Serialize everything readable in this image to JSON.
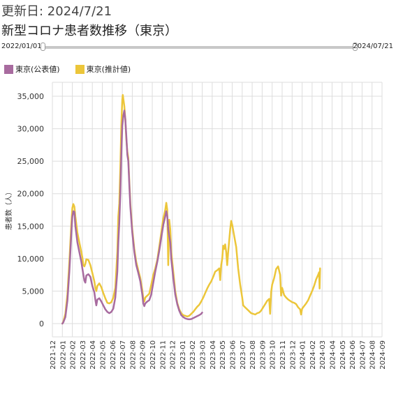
{
  "header": {
    "updated": "更新日: 2024/7/21",
    "title": "新型コロナ患者数推移（東京）"
  },
  "range": {
    "start": "2022/01/01",
    "end": "2024/07/21"
  },
  "colors": {
    "official": "#a86b9f",
    "estimated": "#ecc63a",
    "grid": "#dddddd"
  },
  "chart_data": {
    "type": "line",
    "title": "",
    "xlabel": "",
    "ylabel": "患者数（人）",
    "ylim": [
      0,
      35000
    ],
    "yticks": [
      0,
      5000,
      10000,
      15000,
      20000,
      25000,
      30000,
      35000
    ],
    "ytick_labels": [
      "0",
      "5,000",
      "10,000",
      "15,000",
      "20,000",
      "25,000",
      "30,000",
      "35,000"
    ],
    "x_categories": [
      "2021-12",
      "2022-01",
      "2022-02",
      "2022-03",
      "2022-04",
      "2022-05",
      "2022-06",
      "2022-07",
      "2022-08",
      "2022-09",
      "2022-10",
      "2022-11",
      "2022-12",
      "2023-01",
      "2023-02",
      "2023-03",
      "2023-04",
      "2023-05",
      "2023-06",
      "2023-07",
      "2023-08",
      "2023-09",
      "2023-10",
      "2023-11",
      "2023-12",
      "2024-01",
      "2024-02",
      "2024-03",
      "2024-04",
      "2024-05",
      "2024-06",
      "2024-07",
      "2024-08",
      "2024-09"
    ],
    "legend_position": "top-left",
    "grid": true,
    "series": [
      {
        "name": "東京(公表値)",
        "color": "#a86b9f",
        "points": [
          [
            1,
            0
          ],
          [
            1.1,
            200
          ],
          [
            1.3,
            1000
          ],
          [
            1.5,
            3500
          ],
          [
            1.7,
            8000
          ],
          [
            1.9,
            14000
          ],
          [
            2.0,
            16500
          ],
          [
            2.1,
            17300
          ],
          [
            2.2,
            17200
          ],
          [
            2.3,
            15000
          ],
          [
            2.5,
            12500
          ],
          [
            2.7,
            11000
          ],
          [
            2.9,
            9500
          ],
          [
            3.0,
            8500
          ],
          [
            3.1,
            7600
          ],
          [
            3.2,
            6600
          ],
          [
            3.3,
            6300
          ],
          [
            3.4,
            7400
          ],
          [
            3.6,
            7600
          ],
          [
            3.8,
            7200
          ],
          [
            4.0,
            5800
          ],
          [
            4.2,
            4800
          ],
          [
            4.3,
            3700
          ],
          [
            4.4,
            2800
          ],
          [
            4.5,
            3700
          ],
          [
            4.7,
            3900
          ],
          [
            4.9,
            3400
          ],
          [
            5.1,
            2800
          ],
          [
            5.3,
            2200
          ],
          [
            5.5,
            1800
          ],
          [
            5.7,
            1600
          ],
          [
            5.9,
            1800
          ],
          [
            6.1,
            2300
          ],
          [
            6.3,
            4000
          ],
          [
            6.5,
            8000
          ],
          [
            6.6,
            12500
          ],
          [
            6.7,
            15500
          ],
          [
            6.8,
            20000
          ],
          [
            6.9,
            26000
          ],
          [
            7.0,
            30500
          ],
          [
            7.1,
            32000
          ],
          [
            7.2,
            32800
          ],
          [
            7.3,
            31500
          ],
          [
            7.4,
            29000
          ],
          [
            7.5,
            26000
          ],
          [
            7.6,
            25000
          ],
          [
            7.7,
            21500
          ],
          [
            7.8,
            18000
          ],
          [
            8.0,
            14000
          ],
          [
            8.2,
            11000
          ],
          [
            8.4,
            9000
          ],
          [
            8.6,
            7800
          ],
          [
            8.8,
            6500
          ],
          [
            9.0,
            4500
          ],
          [
            9.1,
            3100
          ],
          [
            9.2,
            2700
          ],
          [
            9.3,
            3100
          ],
          [
            9.5,
            3400
          ],
          [
            9.7,
            3600
          ],
          [
            9.9,
            4500
          ],
          [
            10.1,
            6300
          ],
          [
            10.3,
            8000
          ],
          [
            10.5,
            9500
          ],
          [
            10.7,
            11200
          ],
          [
            10.9,
            13200
          ],
          [
            11.1,
            15200
          ],
          [
            11.3,
            16500
          ],
          [
            11.4,
            17300
          ],
          [
            11.5,
            16500
          ],
          [
            11.6,
            14500
          ],
          [
            11.7,
            13500
          ],
          [
            11.8,
            12500
          ],
          [
            11.9,
            10000
          ],
          [
            12.1,
            7000
          ],
          [
            12.3,
            4500
          ],
          [
            12.5,
            3000
          ],
          [
            12.7,
            2000
          ],
          [
            12.9,
            1300
          ],
          [
            13.1,
            1000
          ],
          [
            13.3,
            800
          ],
          [
            13.5,
            700
          ],
          [
            13.7,
            650
          ],
          [
            13.9,
            700
          ],
          [
            14.1,
            850
          ],
          [
            14.3,
            1000
          ],
          [
            14.5,
            1150
          ],
          [
            14.7,
            1300
          ],
          [
            14.9,
            1500
          ],
          [
            15.0,
            1700
          ]
        ]
      },
      {
        "name": "東京(推計値)",
        "color": "#ecc63a",
        "points": [
          [
            1,
            0
          ],
          [
            1.1,
            300
          ],
          [
            1.3,
            1500
          ],
          [
            1.5,
            4500
          ],
          [
            1.7,
            9500
          ],
          [
            1.9,
            15500
          ],
          [
            2.0,
            17800
          ],
          [
            2.1,
            18400
          ],
          [
            2.2,
            18000
          ],
          [
            2.3,
            16500
          ],
          [
            2.5,
            14000
          ],
          [
            2.7,
            12500
          ],
          [
            2.9,
            11000
          ],
          [
            3.0,
            10200
          ],
          [
            3.1,
            9000
          ],
          [
            3.2,
            8800
          ],
          [
            3.3,
            9200
          ],
          [
            3.4,
            9900
          ],
          [
            3.6,
            9800
          ],
          [
            3.8,
            9000
          ],
          [
            4.0,
            7800
          ],
          [
            4.2,
            6500
          ],
          [
            4.3,
            5500
          ],
          [
            4.4,
            5000
          ],
          [
            4.5,
            5800
          ],
          [
            4.7,
            6200
          ],
          [
            4.9,
            5600
          ],
          [
            5.1,
            4700
          ],
          [
            5.3,
            3900
          ],
          [
            5.5,
            3200
          ],
          [
            5.7,
            3100
          ],
          [
            5.9,
            3300
          ],
          [
            6.1,
            4000
          ],
          [
            6.3,
            5500
          ],
          [
            6.5,
            11000
          ],
          [
            6.6,
            16500
          ],
          [
            6.7,
            18500
          ],
          [
            6.8,
            24000
          ],
          [
            6.9,
            30500
          ],
          [
            7.0,
            34500
          ],
          [
            7.05,
            35200
          ],
          [
            7.2,
            33500
          ],
          [
            7.3,
            31500
          ],
          [
            7.4,
            28500
          ],
          [
            7.5,
            26500
          ],
          [
            7.6,
            25500
          ],
          [
            7.7,
            22000
          ],
          [
            7.8,
            18500
          ],
          [
            8.0,
            14500
          ],
          [
            8.2,
            11500
          ],
          [
            8.4,
            9500
          ],
          [
            8.6,
            8200
          ],
          [
            8.8,
            7000
          ],
          [
            9.0,
            5200
          ],
          [
            9.1,
            3800
          ],
          [
            9.2,
            3400
          ],
          [
            9.3,
            4000
          ],
          [
            9.5,
            4300
          ],
          [
            9.7,
            4600
          ],
          [
            9.9,
            6000
          ],
          [
            10.1,
            7500
          ],
          [
            10.3,
            8500
          ],
          [
            10.5,
            9800
          ],
          [
            10.7,
            11800
          ],
          [
            10.9,
            14000
          ],
          [
            11.1,
            16200
          ],
          [
            11.3,
            17500
          ],
          [
            11.4,
            18600
          ],
          [
            11.5,
            17500
          ],
          [
            11.6,
            9000
          ],
          [
            11.7,
            16000
          ],
          [
            11.8,
            14500
          ],
          [
            11.9,
            11000
          ],
          [
            12.1,
            8000
          ],
          [
            12.3,
            5000
          ],
          [
            12.5,
            3200
          ],
          [
            12.7,
            2200
          ],
          [
            12.9,
            1600
          ],
          [
            13.1,
            1300
          ],
          [
            13.3,
            1200
          ],
          [
            13.5,
            1100
          ],
          [
            13.7,
            1200
          ],
          [
            13.9,
            1500
          ],
          [
            14.1,
            1800
          ],
          [
            14.3,
            2200
          ],
          [
            14.5,
            2600
          ],
          [
            14.7,
            2900
          ],
          [
            14.9,
            3400
          ],
          [
            15.1,
            4000
          ],
          [
            15.3,
            4700
          ],
          [
            15.5,
            5400
          ],
          [
            15.7,
            6000
          ],
          [
            15.9,
            6500
          ],
          [
            16.1,
            7200
          ],
          [
            16.3,
            8000
          ],
          [
            16.5,
            8200
          ],
          [
            16.7,
            8500
          ],
          [
            16.8,
            6700
          ],
          [
            16.9,
            9000
          ],
          [
            17.0,
            10000
          ],
          [
            17.1,
            12000
          ],
          [
            17.2,
            11500
          ],
          [
            17.3,
            12200
          ],
          [
            17.4,
            11000
          ],
          [
            17.5,
            9000
          ],
          [
            17.6,
            11000
          ],
          [
            17.8,
            14500
          ],
          [
            17.9,
            15800
          ],
          [
            18.0,
            15200
          ],
          [
            18.2,
            13500
          ],
          [
            18.4,
            11800
          ],
          [
            18.6,
            8500
          ],
          [
            18.8,
            6000
          ],
          [
            19.0,
            4000
          ],
          [
            19.1,
            2800
          ],
          [
            19.3,
            2500
          ],
          [
            19.5,
            2200
          ],
          [
            19.7,
            1900
          ],
          [
            19.9,
            1600
          ],
          [
            20.1,
            1500
          ],
          [
            20.3,
            1400
          ],
          [
            20.5,
            1600
          ],
          [
            20.7,
            1700
          ],
          [
            20.9,
            2000
          ],
          [
            21.1,
            2500
          ],
          [
            21.3,
            3000
          ],
          [
            21.5,
            3500
          ],
          [
            21.7,
            3800
          ],
          [
            21.8,
            1500
          ],
          [
            21.9,
            4800
          ],
          [
            22.0,
            6000
          ],
          [
            22.2,
            7000
          ],
          [
            22.4,
            8400
          ],
          [
            22.6,
            8800
          ],
          [
            22.8,
            7500
          ],
          [
            22.9,
            4300
          ],
          [
            23.0,
            5500
          ],
          [
            23.2,
            4400
          ],
          [
            23.4,
            4000
          ],
          [
            23.6,
            3700
          ],
          [
            23.8,
            3500
          ],
          [
            24.0,
            3300
          ],
          [
            24.2,
            3200
          ],
          [
            24.4,
            3000
          ],
          [
            24.6,
            2500
          ],
          [
            24.8,
            2200
          ],
          [
            24.9,
            1400
          ],
          [
            25.0,
            2300
          ],
          [
            25.2,
            2700
          ],
          [
            25.4,
            3100
          ],
          [
            25.6,
            3600
          ],
          [
            25.8,
            4300
          ],
          [
            26.0,
            5000
          ],
          [
            26.2,
            5800
          ],
          [
            26.4,
            6800
          ],
          [
            26.6,
            7500
          ],
          [
            26.7,
            7900
          ],
          [
            26.75,
            5400
          ],
          [
            26.8,
            8500
          ]
        ]
      }
    ]
  }
}
